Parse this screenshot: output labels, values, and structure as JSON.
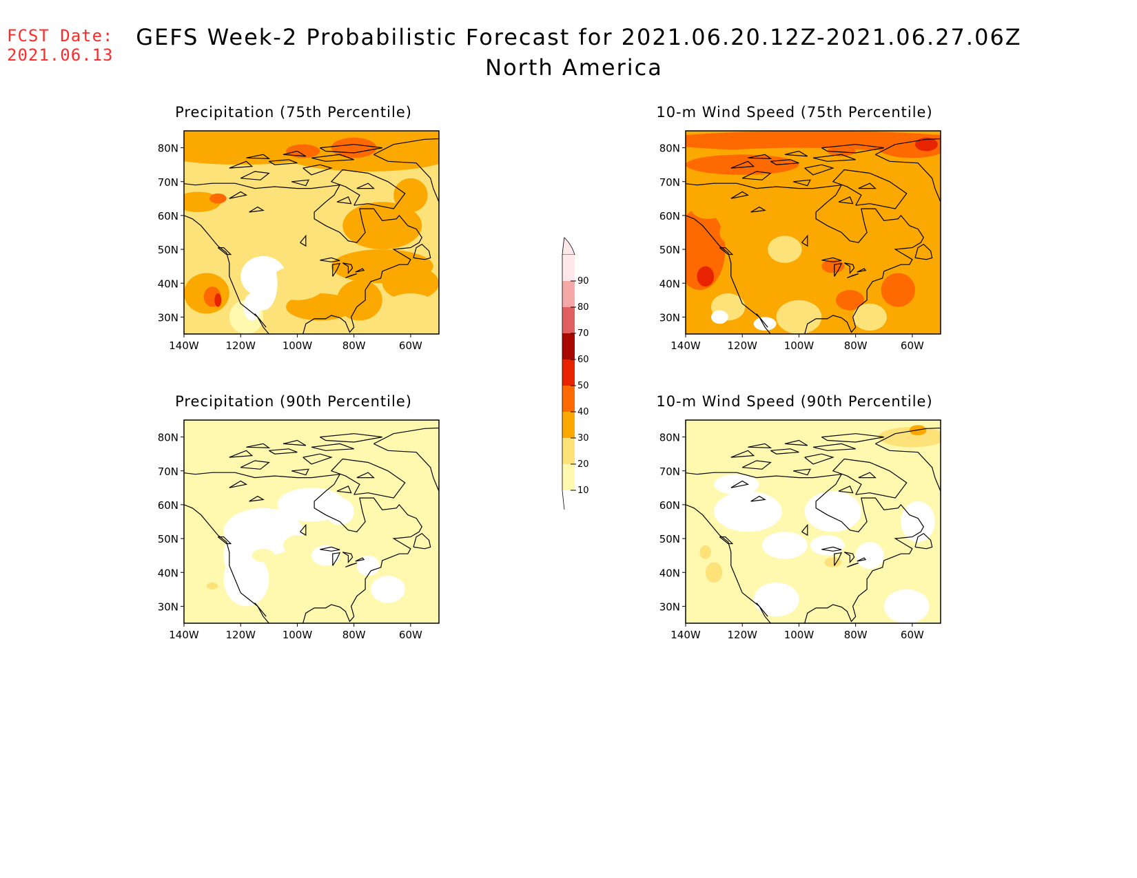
{
  "header": {
    "fcst_label": "FCST Date:",
    "fcst_date": "2021.06.13",
    "title_line1": "GEFS Week-2 Probabilistic Forecast for 2021.06.20.12Z-2021.06.27.06Z",
    "title_line2": "North America"
  },
  "axes": {
    "lat_ticks": [
      "80N",
      "70N",
      "60N",
      "50N",
      "40N",
      "30N"
    ],
    "lon_ticks": [
      "140W",
      "120W",
      "100W",
      "80W",
      "60W"
    ]
  },
  "panels": [
    {
      "title": "Precipitation (75th Percentile)",
      "variable": "precipitation",
      "percentile": 75
    },
    {
      "title": "10-m Wind Speed (75th Percentile)",
      "variable": "wind",
      "percentile": 75
    },
    {
      "title": "Precipitation (90th Percentile)",
      "variable": "precipitation",
      "percentile": 90
    },
    {
      "title": "10-m Wind Speed (90th Percentile)",
      "variable": "wind",
      "percentile": 90
    }
  ],
  "colorbar": {
    "levels": [
      "10",
      "20",
      "30",
      "40",
      "50",
      "60",
      "70",
      "80",
      "90"
    ],
    "colors": [
      "#fff9b0",
      "#fde27a",
      "#fba800",
      "#ff6a00",
      "#e82300",
      "#a80800",
      "#e06060",
      "#f4a8a8",
      "#ffe8ea"
    ]
  },
  "colors": {
    "fcst_text": "#ff2a2a",
    "map_background_white": "#ffffff",
    "coast": "#000000"
  }
}
